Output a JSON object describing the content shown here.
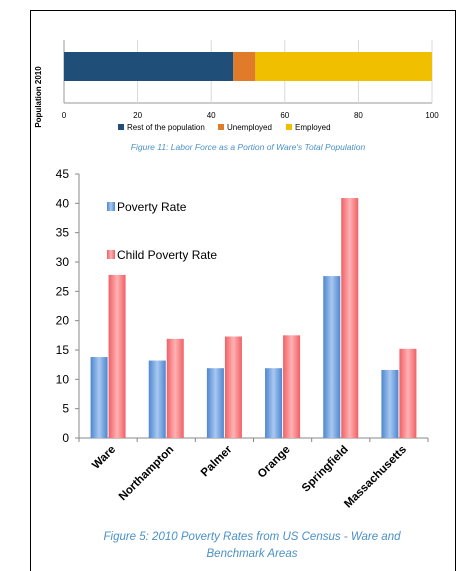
{
  "chart_data": [
    {
      "type": "bar",
      "orientation": "horizontal",
      "stacked": true,
      "categories": [
        "Population 2010"
      ],
      "ylabel": "Population 2010",
      "xlim": [
        0,
        100
      ],
      "xticks": [
        0,
        20,
        40,
        60,
        80,
        100
      ],
      "series": [
        {
          "name": "Rest of the population",
          "values": [
            46
          ],
          "color": "#1f4e79"
        },
        {
          "name": "Unemployed",
          "values": [
            6
          ],
          "color": "#e07b2a"
        },
        {
          "name": "Employed",
          "values": [
            48
          ],
          "color": "#f0c000"
        }
      ],
      "legend_position": "bottom",
      "title": "Figure 11: Labor Force as a Portion of Ware's Total Population"
    },
    {
      "type": "bar",
      "categories": [
        "Ware",
        "Northampton",
        "Palmer",
        "Orange",
        "Springfield",
        "Massachusetts"
      ],
      "ylim": [
        0,
        45
      ],
      "yticks": [
        0,
        5,
        10,
        15,
        20,
        25,
        30,
        35,
        40,
        45
      ],
      "series": [
        {
          "name": "Poverty  Rate",
          "values": [
            13.8,
            13.2,
            11.9,
            11.9,
            27.6,
            11.6
          ],
          "color": "#6a9fdc"
        },
        {
          "name": "Child Poverty Rate",
          "values": [
            27.8,
            16.9,
            17.3,
            17.5,
            40.9,
            15.2
          ],
          "color": "#f27b7e"
        }
      ],
      "legend_position": "top-left",
      "title": "Figure 5: 2010 Poverty Rates from US Census - Ware and Benchmark Areas",
      "title_lines": [
        "Figure 5: 2010 Poverty Rates from US Census - Ware and",
        "Benchmark Areas"
      ]
    }
  ]
}
